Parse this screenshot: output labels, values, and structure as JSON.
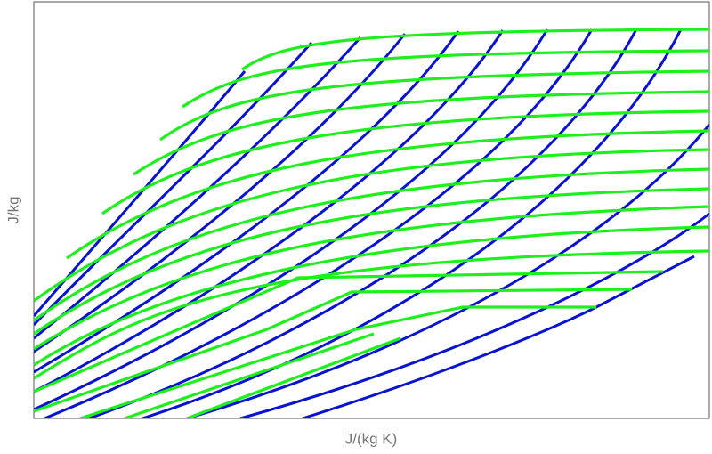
{
  "chart_data": {
    "type": "line",
    "xlabel": "J/(kg K)",
    "ylabel": "J/kg"
  }
}
